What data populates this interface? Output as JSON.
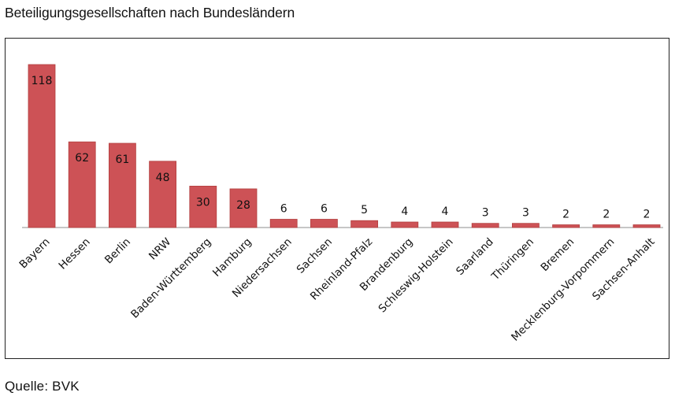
{
  "title": "Beteiligungsgesellschaften nach Bundesländern",
  "source": "Quelle: BVK",
  "colors": {
    "bar": "#cd5256",
    "bar_edge": "#b2403f",
    "axis": "#8c8c8c",
    "frame": "#222222"
  },
  "chart_data": {
    "type": "bar",
    "title": "Beteiligungsgesellschaften nach Bundesländern",
    "xlabel": "",
    "ylabel": "",
    "ylim": [
      0,
      118
    ],
    "grid": false,
    "legend": "none",
    "categories": [
      "Bayern",
      "Hessen",
      "Berlin",
      "NRW",
      "Baden-Württemberg",
      "Hamburg",
      "Niedersachsen",
      "Sachsen",
      "Rheinland-Pfalz",
      "Brandenburg",
      "Schleswig-Holstein",
      "Saarland",
      "Thüringen",
      "Bremen",
      "Mecklenburg-Vorpommern",
      "Sachsen-Anhalt"
    ],
    "values": [
      118,
      62,
      61,
      48,
      30,
      28,
      6,
      6,
      5,
      4,
      4,
      3,
      3,
      2,
      2,
      2
    ],
    "data_labels": [
      "118",
      "62",
      "61",
      "48",
      "30",
      "28",
      "6",
      "6",
      "5",
      "4",
      "4",
      "3",
      "3",
      "2",
      "2",
      "2"
    ]
  }
}
